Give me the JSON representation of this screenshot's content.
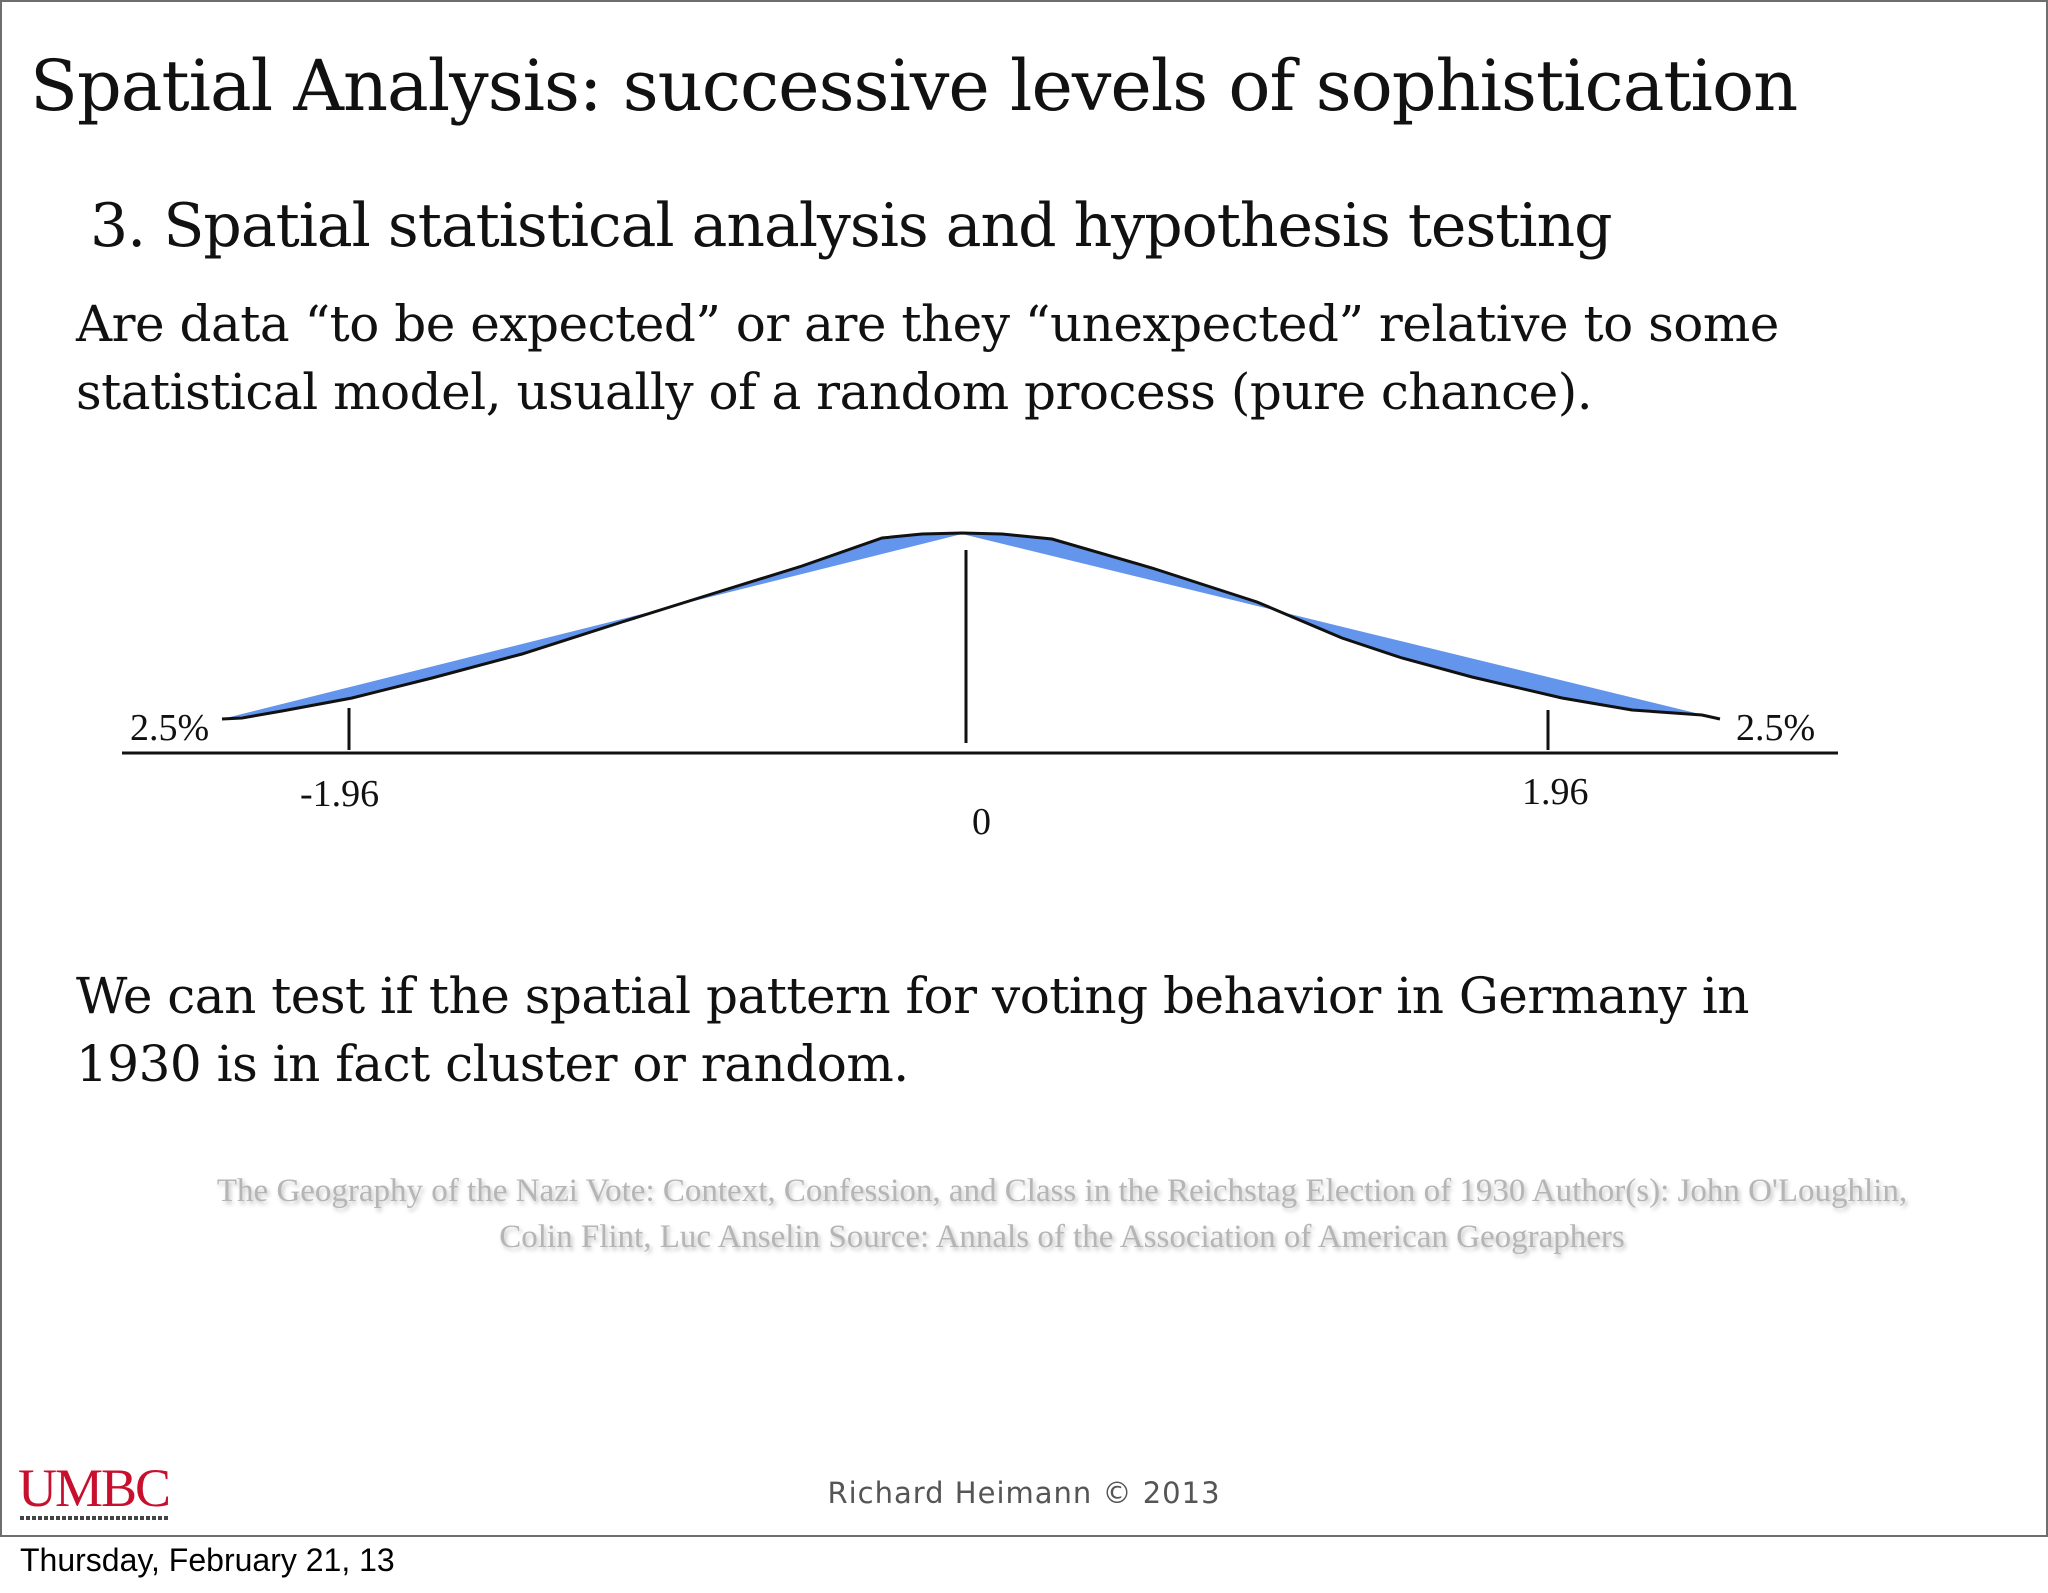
{
  "slide": {
    "title": "Spatial Analysis: successive levels of sophistication",
    "subtitle": "3. Spatial statistical analysis and hypothesis testing",
    "paragraph1_line1": "Are data “to be expected” or are they “unexpected” relative to some",
    "paragraph1_line2": "statistical model, usually of a random process (pure chance).",
    "paragraph2_line1": "We can test if the spatial pattern for voting behavior in Germany in",
    "paragraph2_line2": "1930 is in fact cluster or random.",
    "citation_line1": "The Geography of the Nazi Vote: Context, Confession, and Class in the Reichstag Election of 1930 Author(s): John O'Loughlin,",
    "citation_line2": "Colin Flint, Luc Anselin Source: Annals of the Association of American Geographers",
    "logo_text": "UMBC",
    "credit": "Richard Heimann © 2013"
  },
  "chart": {
    "left_tail_label": "2.5%",
    "right_tail_label": "2.5%",
    "tick_left": "-1.96",
    "tick_center": "0",
    "tick_right": "1.96",
    "fill_color": "#6495ed",
    "line_color": "#111111"
  },
  "footer": {
    "date": "Thursday, February 21, 13"
  }
}
